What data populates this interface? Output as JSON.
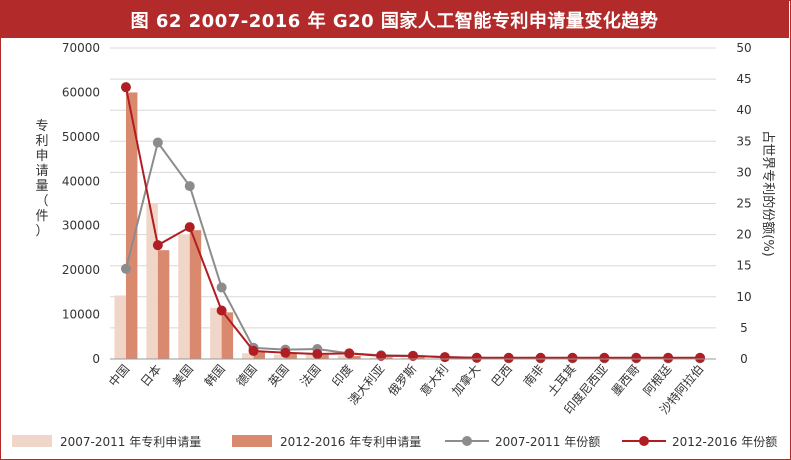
{
  "title": "图 62 2007-2016 年 G20 国家人工智能专利申请量变化趋势",
  "colors": {
    "title_bg": "#b22a2a",
    "bar_2007_2011": "#f0d6c8",
    "bar_2012_2016": "#d98a6e",
    "line_2007_2011": "#8c8c8c",
    "line_2012_2016": "#b01e23",
    "grid": "#d8d8d8",
    "axis_text": "#333333"
  },
  "chart_data": {
    "type": "bar",
    "title": "图 62 2007-2016 年 G20 国家人工智能专利申请量变化趋势",
    "categories": [
      "中国",
      "日本",
      "美国",
      "韩国",
      "德国",
      "英国",
      "法国",
      "印度",
      "澳大利亚",
      "俄罗斯",
      "意大利",
      "加拿大",
      "巴西",
      "南非",
      "土耳其",
      "印度尼西亚",
      "墨西哥",
      "阿根廷",
      "沙特阿拉伯"
    ],
    "ylabel": "专利申请量（件）",
    "y2label": "占世界专利的份额(%)",
    "ylim": [
      0,
      70000
    ],
    "yticks": [
      "0",
      "10000",
      "20000",
      "30000",
      "40000",
      "50000",
      "60000",
      "70000"
    ],
    "y2lim": [
      0,
      50
    ],
    "y2ticks": [
      "0",
      "5",
      "10",
      "15",
      "20",
      "25",
      "30",
      "35",
      "40",
      "45",
      "50"
    ],
    "grid": true,
    "legend_position": "bottom",
    "series": [
      {
        "name": "2007-2011 年专利申请量",
        "kind": "bar",
        "axis": "left",
        "values": [
          14300,
          35000,
          28000,
          11500,
          1300,
          1000,
          1100,
          800,
          300,
          300,
          150,
          100,
          80,
          60,
          50,
          40,
          40,
          30,
          20
        ]
      },
      {
        "name": "2012-2016 年专利申请量",
        "kind": "bar",
        "axis": "left",
        "values": [
          60000,
          24500,
          29000,
          10500,
          1500,
          1200,
          900,
          700,
          400,
          400,
          200,
          150,
          100,
          80,
          80,
          50,
          50,
          40,
          30
        ]
      },
      {
        "name": "2007-2011 年份额",
        "kind": "line",
        "axis": "right",
        "values": [
          14.5,
          34.8,
          27.8,
          11.5,
          1.8,
          1.5,
          1.6,
          0.9,
          0.6,
          0.5,
          0.3,
          0.2,
          0.1,
          0.1,
          0.1,
          0.1,
          0.1,
          0.1,
          0.1
        ]
      },
      {
        "name": "2012-2016 年份额",
        "kind": "line",
        "axis": "right",
        "values": [
          43.7,
          18.3,
          21.2,
          7.8,
          1.3,
          1.0,
          0.8,
          0.9,
          0.5,
          0.5,
          0.3,
          0.2,
          0.2,
          0.2,
          0.2,
          0.2,
          0.2,
          0.2,
          0.2
        ]
      }
    ]
  }
}
